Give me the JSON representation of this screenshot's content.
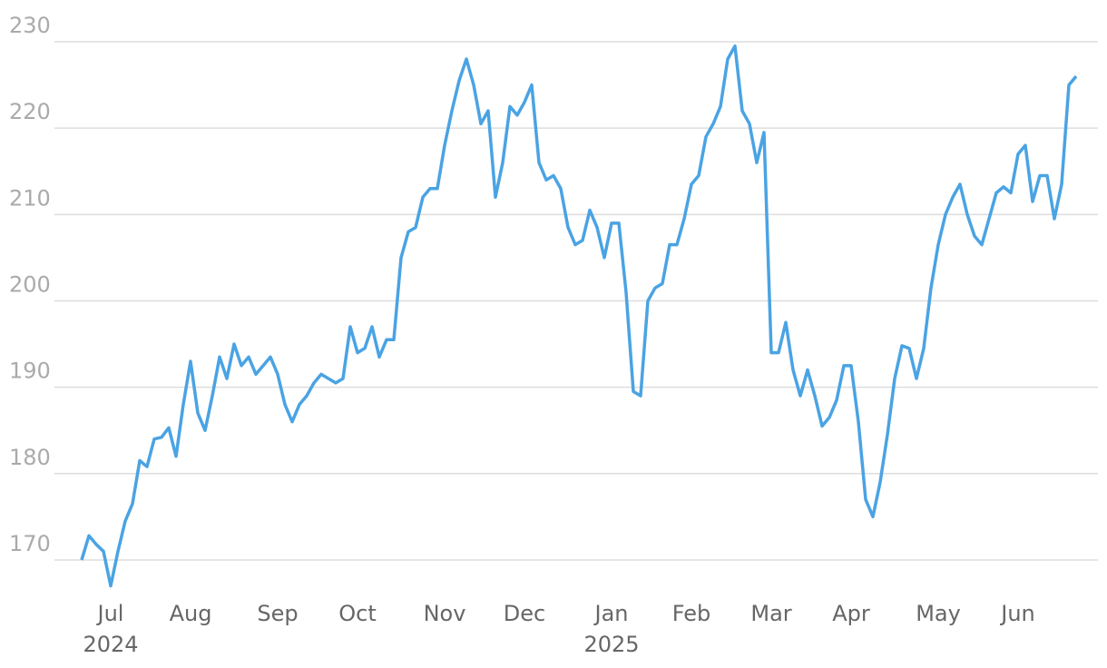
{
  "chart_data": {
    "type": "line",
    "color": "#4aa3e3",
    "grid": true,
    "ylim": [
      166,
      230
    ],
    "yticks": [
      170,
      180,
      190,
      200,
      210,
      220,
      230
    ],
    "categories": [
      null,
      null,
      null,
      null,
      "Jul 2024",
      null,
      null,
      null,
      null,
      null,
      null,
      null,
      null,
      null,
      null,
      "Aug",
      null,
      null,
      null,
      null,
      null,
      null,
      null,
      null,
      null,
      null,
      null,
      "Sep",
      null,
      null,
      null,
      null,
      null,
      null,
      null,
      null,
      null,
      null,
      "Oct",
      null,
      null,
      null,
      null,
      null,
      null,
      null,
      null,
      null,
      null,
      null,
      "Nov",
      null,
      null,
      null,
      null,
      null,
      null,
      null,
      null,
      null,
      null,
      "Dec",
      null,
      null,
      null,
      null,
      null,
      null,
      null,
      null,
      null,
      null,
      null,
      "Jan 2025",
      null,
      null,
      null,
      null,
      null,
      null,
      null,
      null,
      null,
      null,
      "Feb",
      null,
      null,
      null,
      null,
      null,
      null,
      null,
      null,
      null,
      null,
      "Mar",
      null,
      null,
      null,
      null,
      null,
      null,
      null,
      null,
      null,
      null,
      "Apr",
      null,
      null,
      null,
      null,
      null,
      null,
      null,
      null,
      null,
      null,
      null,
      "May",
      null,
      null,
      null,
      null,
      null,
      null,
      null,
      null,
      null,
      null,
      "Jun",
      null,
      null,
      null,
      null,
      null,
      null,
      null,
      null
    ],
    "values": [
      170,
      172.8,
      171.8,
      171,
      167,
      171,
      174.5,
      176.5,
      181.5,
      180.8,
      184,
      184.2,
      185.3,
      182,
      188,
      193,
      187,
      185,
      189,
      193.5,
      191,
      195,
      192.5,
      193.5,
      191.5,
      192.5,
      193.5,
      191.5,
      188,
      186,
      188,
      189,
      190.5,
      191.5,
      191,
      190.5,
      191,
      197,
      194,
      194.5,
      197,
      193.5,
      195.5,
      195.5,
      205,
      208,
      208.5,
      212,
      213,
      213,
      218,
      222,
      225.5,
      228,
      225,
      220.5,
      222,
      212,
      216,
      222.5,
      221.5,
      223,
      225,
      216,
      214,
      214.5,
      213,
      208.5,
      206.5,
      207,
      210.5,
      208.5,
      205,
      209,
      209,
      201,
      189.5,
      189,
      200,
      201.5,
      202,
      206.5,
      206.5,
      209.5,
      213.5,
      214.5,
      219,
      220.5,
      222.5,
      228,
      229.5,
      222,
      220.5,
      216,
      219.5,
      194,
      194,
      197.5,
      192,
      189,
      192,
      189,
      185.5,
      186.5,
      188.5,
      192.5,
      192.5,
      186,
      177,
      175,
      179,
      184.5,
      191,
      194.8,
      194.5,
      191,
      194.5,
      201.5,
      206.5,
      210,
      212,
      213.5,
      210,
      207.5,
      206.5,
      209.5,
      212.5,
      213.2,
      212.5,
      217,
      218,
      211.5,
      214.5,
      214.5,
      209.5,
      213.5,
      225,
      226
    ]
  }
}
